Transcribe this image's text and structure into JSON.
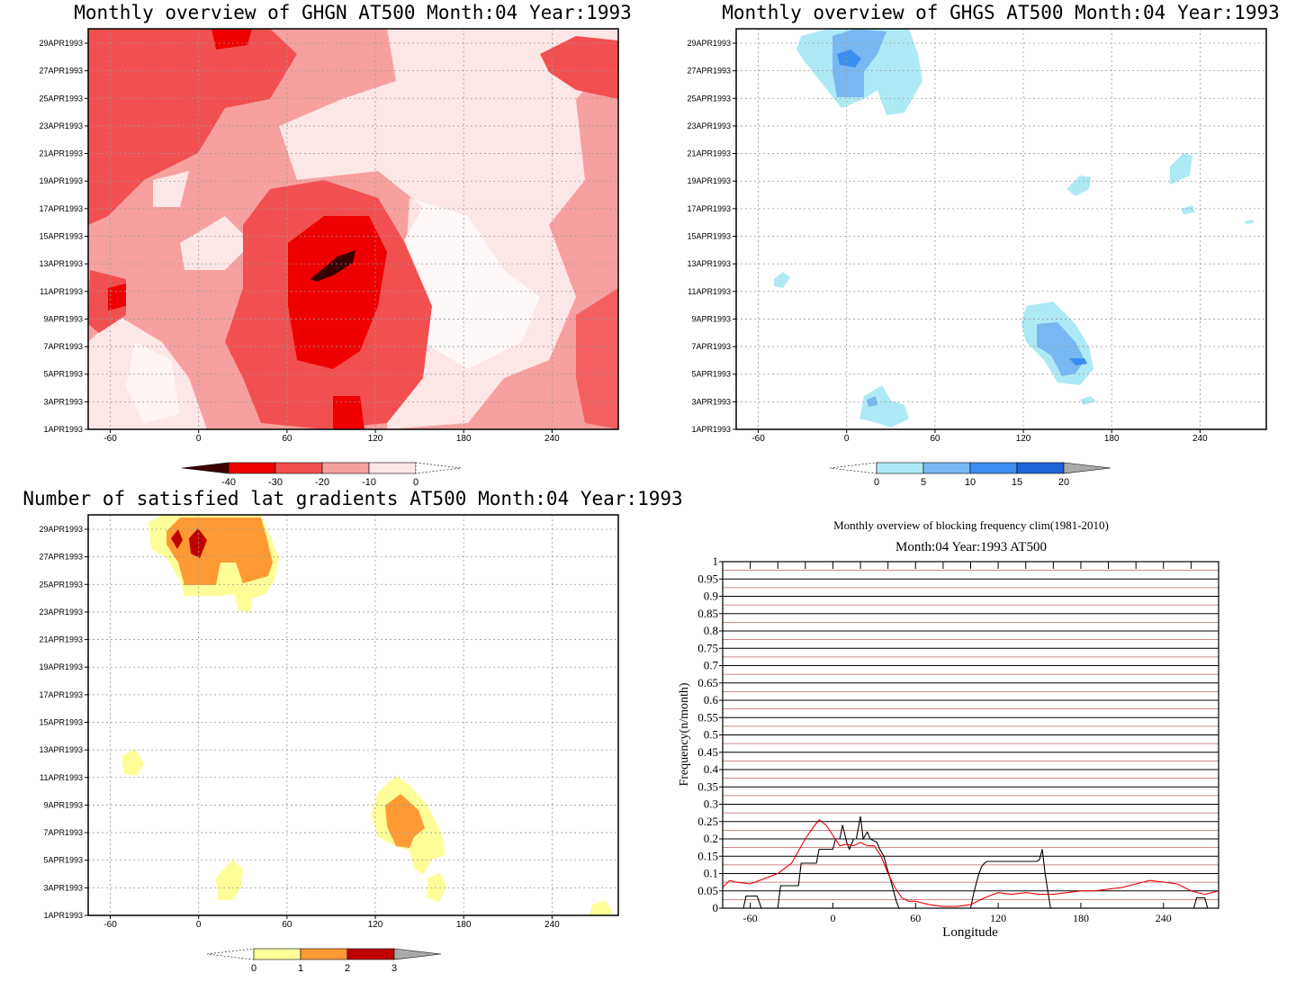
{
  "panels": {
    "ghgn": {
      "title": "Monthly overview of GHGN AT500 Month:04 Year:1993",
      "y_labels": [
        "29APR1993",
        "27APR1993",
        "25APR1993",
        "23APR1993",
        "21APR1993",
        "19APR1993",
        "17APR1993",
        "15APR1993",
        "13APR1993",
        "11APR1993",
        "9APR1993",
        "7APR1993",
        "5APR1993",
        "3APR1993",
        "1APR1993"
      ],
      "x_labels": [
        "-60",
        "0",
        "60",
        "120",
        "180",
        "240"
      ],
      "colorbar": {
        "labels": [
          "-40",
          "-30",
          "-20",
          "-10",
          "0"
        ],
        "colors": [
          "#3a0000",
          "#ee0000",
          "#f25050",
          "#f7a0a0",
          "#fde6e6"
        ]
      }
    },
    "ghgs": {
      "title": "Monthly overview of GHGS AT500 Month:04 Year:1993",
      "y_labels": [
        "29APR1993",
        "27APR1993",
        "25APR1993",
        "23APR1993",
        "21APR1993",
        "19APR1993",
        "17APR1993",
        "15APR1993",
        "13APR1993",
        "11APR1993",
        "9APR1993",
        "7APR1993",
        "5APR1993",
        "3APR1993",
        "1APR1993"
      ],
      "x_labels": [
        "-60",
        "0",
        "60",
        "120",
        "180",
        "240"
      ],
      "colorbar": {
        "labels": [
          "0",
          "5",
          "10",
          "15",
          "20"
        ],
        "colors": [
          "#aeeaf5",
          "#78b8f2",
          "#3c8ef0",
          "#1f64d8",
          "#aaaaaa"
        ]
      }
    },
    "lat": {
      "title": "Number of satisfied lat gradients AT500 Month:04 Year:1993",
      "y_labels": [
        "29APR1993",
        "27APR1993",
        "25APR1993",
        "23APR1993",
        "21APR1993",
        "19APR1993",
        "17APR1993",
        "15APR1993",
        "13APR1993",
        "11APR1993",
        "9APR1993",
        "7APR1993",
        "5APR1993",
        "3APR1993",
        "1APR1993"
      ],
      "x_labels": [
        "-60",
        "0",
        "60",
        "120",
        "180",
        "240"
      ],
      "colorbar": {
        "labels": [
          "0",
          "1",
          "2",
          "3"
        ],
        "colors": [
          "#fefe99",
          "#ff9933",
          "#c00000",
          "#aaaaaa"
        ]
      }
    },
    "freq": {
      "title": "Monthly overview of blocking frequency clim(1981-2010)",
      "subtitle": "Month:04 Year:1993  AT500"
    }
  },
  "chart_data": [
    {
      "type": "heatmap",
      "title": "Monthly overview of GHGN AT500 Month:04 Year:1993",
      "x_ticks": [
        -60,
        0,
        60,
        120,
        180,
        240
      ],
      "y_ticks": [
        "29APR1993",
        "27APR1993",
        "25APR1993",
        "23APR1993",
        "21APR1993",
        "19APR1993",
        "17APR1993",
        "15APR1993",
        "13APR1993",
        "11APR1993",
        "9APR1993",
        "7APR1993",
        "5APR1993",
        "3APR1993",
        "1APR1993"
      ],
      "xlim": [
        -75,
        285
      ],
      "levels": [
        -40,
        -30,
        -20,
        -10,
        0
      ]
    },
    {
      "type": "heatmap",
      "title": "Monthly overview of GHGS AT500 Month:04 Year:1993",
      "x_ticks": [
        -60,
        0,
        60,
        120,
        180,
        240
      ],
      "y_ticks": [
        "29APR1993",
        "27APR1993",
        "25APR1993",
        "23APR1993",
        "21APR1993",
        "19APR1993",
        "17APR1993",
        "15APR1993",
        "13APR1993",
        "11APR1993",
        "9APR1993",
        "7APR1993",
        "5APR1993",
        "3APR1993",
        "1APR1993"
      ],
      "xlim": [
        -75,
        285
      ],
      "levels": [
        0,
        5,
        10,
        15,
        20
      ]
    },
    {
      "type": "heatmap",
      "title": "Number of satisfied lat gradients AT500 Month:04 Year:1993",
      "x_ticks": [
        -60,
        0,
        60,
        120,
        180,
        240
      ],
      "y_ticks": [
        "29APR1993",
        "27APR1993",
        "25APR1993",
        "23APR1993",
        "21APR1993",
        "19APR1993",
        "17APR1993",
        "15APR1993",
        "13APR1993",
        "11APR1993",
        "9APR1993",
        "7APR1993",
        "5APR1993",
        "3APR1993",
        "1APR1993"
      ],
      "xlim": [
        -75,
        285
      ],
      "levels": [
        0,
        1,
        2,
        3
      ]
    },
    {
      "type": "line",
      "title": "Monthly overview of blocking frequency clim(1981-2010)",
      "subtitle": "Month:04 Year:1993  AT500",
      "xlabel": "Longitude",
      "ylabel": "Frequency(n/month)",
      "xlim": [
        -80,
        280
      ],
      "ylim": [
        0,
        1
      ],
      "x_ticks": [
        -60,
        0,
        60,
        120,
        180,
        240
      ],
      "y_ticks": [
        0,
        0.05,
        0.1,
        0.15,
        0.2,
        0.25,
        0.3,
        0.35,
        0.4,
        0.45,
        0.5,
        0.55,
        0.6,
        0.65,
        0.7,
        0.75,
        0.8,
        0.85,
        0.9,
        0.95,
        1
      ],
      "grid": true,
      "series": [
        {
          "color": "#000000",
          "x": [
            -80,
            -65,
            -63,
            -55,
            -52,
            -40,
            -38,
            -25,
            -23,
            -12,
            -10,
            0,
            2,
            5,
            7,
            10,
            12,
            15,
            17,
            20,
            22,
            25,
            27,
            32,
            34,
            37,
            39,
            42,
            44,
            46,
            48,
            100,
            102,
            104,
            106,
            108,
            110,
            112,
            114,
            148,
            150,
            152,
            154,
            156,
            158,
            220,
            262,
            264,
            270,
            272,
            280
          ],
          "y": [
            0,
            0,
            0.035,
            0.035,
            0,
            0,
            0.065,
            0.065,
            0.13,
            0.13,
            0.17,
            0.17,
            0.2,
            0.2,
            0.24,
            0.19,
            0.17,
            0.2,
            0.2,
            0.265,
            0.2,
            0.22,
            0.2,
            0.19,
            0.17,
            0.15,
            0.12,
            0.08,
            0.05,
            0.02,
            0,
            0,
            0.04,
            0.07,
            0.1,
            0.12,
            0.13,
            0.135,
            0.135,
            0.135,
            0.14,
            0.17,
            0.1,
            0.05,
            0,
            0,
            0,
            0.03,
            0.03,
            0,
            0
          ]
        },
        {
          "color": "#ee0000",
          "x": [
            -80,
            -75,
            -70,
            -60,
            -50,
            -40,
            -30,
            -20,
            -15,
            -10,
            -5,
            0,
            5,
            10,
            15,
            20,
            25,
            30,
            35,
            40,
            45,
            50,
            55,
            60,
            70,
            80,
            90,
            100,
            105,
            110,
            120,
            130,
            140,
            150,
            160,
            170,
            180,
            190,
            200,
            210,
            220,
            230,
            240,
            250,
            260,
            270,
            280
          ],
          "y": [
            0.06,
            0.08,
            0.075,
            0.07,
            0.085,
            0.1,
            0.13,
            0.2,
            0.23,
            0.255,
            0.24,
            0.21,
            0.18,
            0.185,
            0.18,
            0.19,
            0.18,
            0.18,
            0.15,
            0.1,
            0.06,
            0.03,
            0.02,
            0.02,
            0.01,
            0.005,
            0.005,
            0.01,
            0.02,
            0.03,
            0.045,
            0.04,
            0.045,
            0.04,
            0.04,
            0.045,
            0.05,
            0.05,
            0.055,
            0.06,
            0.07,
            0.08,
            0.075,
            0.07,
            0.05,
            0.04,
            0.05
          ]
        }
      ]
    }
  ]
}
